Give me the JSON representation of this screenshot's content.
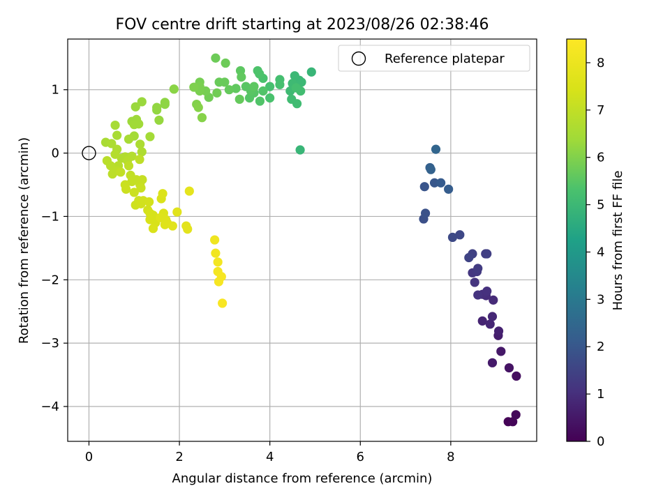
{
  "chart_data": {
    "type": "scatter",
    "title": "FOV centre drift starting at 2023/08/26 02:38:46",
    "xlabel": "Angular distance from reference (arcmin)",
    "ylabel": "Rotation from reference (arcmin)",
    "xlim": [
      -0.47,
      9.9
    ],
    "ylim": [
      -4.55,
      1.8
    ],
    "xticks": [
      0,
      2,
      4,
      6,
      8
    ],
    "xtick_labels": [
      "0",
      "2",
      "4",
      "6",
      "8"
    ],
    "yticks": [
      -4,
      -3,
      -2,
      -1,
      0,
      1
    ],
    "ytick_labels": [
      "−4",
      "−3",
      "−2",
      "−1",
      "0",
      "1"
    ],
    "grid": true,
    "colormap": "viridis",
    "colorbar": {
      "label": "Hours from first FF file",
      "range": [
        0,
        8.5
      ],
      "ticks": [
        0,
        1,
        2,
        3,
        4,
        5,
        6,
        7,
        8
      ],
      "tick_labels": [
        "0",
        "1",
        "2",
        "3",
        "4",
        "5",
        "6",
        "7",
        "8"
      ]
    },
    "legend": {
      "position": "top-right",
      "label": "Reference platepar"
    },
    "reference_point": {
      "x": 0,
      "y": 0
    },
    "points": [
      {
        "x": 9.27,
        "y": -4.24,
        "t": 0.05
      },
      {
        "x": 9.37,
        "y": -4.24,
        "t": 0.1
      },
      {
        "x": 9.44,
        "y": -4.13,
        "t": 0.15
      },
      {
        "x": 9.45,
        "y": -3.52,
        "t": 0.3
      },
      {
        "x": 9.29,
        "y": -3.39,
        "t": 0.4
      },
      {
        "x": 9.11,
        "y": -3.13,
        "t": 0.5
      },
      {
        "x": 8.92,
        "y": -3.31,
        "t": 0.55
      },
      {
        "x": 9.05,
        "y": -2.88,
        "t": 0.6
      },
      {
        "x": 9.06,
        "y": -2.81,
        "t": 0.7
      },
      {
        "x": 8.7,
        "y": -2.65,
        "t": 0.75
      },
      {
        "x": 8.87,
        "y": -2.7,
        "t": 0.8
      },
      {
        "x": 8.92,
        "y": -2.58,
        "t": 0.85
      },
      {
        "x": 8.94,
        "y": -2.32,
        "t": 0.9
      },
      {
        "x": 8.78,
        "y": -2.25,
        "t": 0.95
      },
      {
        "x": 8.7,
        "y": -2.23,
        "t": 1.0
      },
      {
        "x": 8.8,
        "y": -2.18,
        "t": 1.05
      },
      {
        "x": 8.6,
        "y": -2.24,
        "t": 1.1
      },
      {
        "x": 8.53,
        "y": -2.04,
        "t": 1.15
      },
      {
        "x": 8.48,
        "y": -1.89,
        "t": 1.2
      },
      {
        "x": 8.58,
        "y": -1.87,
        "t": 1.25
      },
      {
        "x": 8.6,
        "y": -1.82,
        "t": 1.3
      },
      {
        "x": 8.77,
        "y": -1.59,
        "t": 1.35
      },
      {
        "x": 8.8,
        "y": -1.59,
        "t": 1.4
      },
      {
        "x": 8.48,
        "y": -1.59,
        "t": 1.45
      },
      {
        "x": 8.4,
        "y": -1.65,
        "t": 1.5
      },
      {
        "x": 8.2,
        "y": -1.29,
        "t": 1.6
      },
      {
        "x": 8.04,
        "y": -1.33,
        "t": 1.65
      },
      {
        "x": 7.4,
        "y": -1.04,
        "t": 1.8
      },
      {
        "x": 7.44,
        "y": -0.95,
        "t": 1.85
      },
      {
        "x": 7.42,
        "y": -0.53,
        "t": 1.95
      },
      {
        "x": 7.64,
        "y": -0.47,
        "t": 2.0
      },
      {
        "x": 7.78,
        "y": -0.47,
        "t": 2.1
      },
      {
        "x": 7.95,
        "y": -0.57,
        "t": 2.15
      },
      {
        "x": 7.54,
        "y": -0.23,
        "t": 2.25
      },
      {
        "x": 7.56,
        "y": -0.26,
        "t": 2.3
      },
      {
        "x": 7.67,
        "y": 0.06,
        "t": 2.4
      },
      {
        "x": 4.67,
        "y": 0.05,
        "t": 4.9
      },
      {
        "x": 4.92,
        "y": 1.28,
        "t": 4.9
      },
      {
        "x": 4.65,
        "y": 1.15,
        "t": 4.95
      },
      {
        "x": 4.7,
        "y": 1.12,
        "t": 5.0
      },
      {
        "x": 4.55,
        "y": 1.22,
        "t": 5.0
      },
      {
        "x": 4.5,
        "y": 1.1,
        "t": 5.05
      },
      {
        "x": 4.45,
        "y": 0.98,
        "t": 5.05
      },
      {
        "x": 4.6,
        "y": 0.78,
        "t": 5.1
      },
      {
        "x": 4.48,
        "y": 0.85,
        "t": 5.1
      },
      {
        "x": 4.68,
        "y": 0.98,
        "t": 5.15
      },
      {
        "x": 4.58,
        "y": 1.03,
        "t": 5.2
      },
      {
        "x": 4.22,
        "y": 1.16,
        "t": 5.2
      },
      {
        "x": 4.22,
        "y": 1.08,
        "t": 5.25
      },
      {
        "x": 4.0,
        "y": 1.05,
        "t": 5.25
      },
      {
        "x": 4.0,
        "y": 0.87,
        "t": 5.3
      },
      {
        "x": 3.85,
        "y": 1.18,
        "t": 5.3
      },
      {
        "x": 3.73,
        "y": 1.3,
        "t": 5.35
      },
      {
        "x": 3.77,
        "y": 1.25,
        "t": 5.35
      },
      {
        "x": 3.85,
        "y": 0.98,
        "t": 5.4
      },
      {
        "x": 3.78,
        "y": 0.82,
        "t": 5.4
      },
      {
        "x": 3.65,
        "y": 0.95,
        "t": 5.45
      },
      {
        "x": 3.55,
        "y": 0.87,
        "t": 5.45
      },
      {
        "x": 3.58,
        "y": 0.98,
        "t": 5.5
      },
      {
        "x": 3.47,
        "y": 1.05,
        "t": 5.5
      },
      {
        "x": 3.65,
        "y": 1.05,
        "t": 5.55
      },
      {
        "x": 3.35,
        "y": 1.3,
        "t": 5.55
      },
      {
        "x": 3.37,
        "y": 1.2,
        "t": 5.6
      },
      {
        "x": 3.25,
        "y": 1.02,
        "t": 5.6
      },
      {
        "x": 3.33,
        "y": 0.85,
        "t": 5.65
      },
      {
        "x": 3.1,
        "y": 1.0,
        "t": 5.65
      },
      {
        "x": 3.0,
        "y": 1.12,
        "t": 5.7
      },
      {
        "x": 2.88,
        "y": 1.12,
        "t": 5.7
      },
      {
        "x": 3.02,
        "y": 1.42,
        "t": 5.75
      },
      {
        "x": 2.8,
        "y": 1.5,
        "t": 5.75
      },
      {
        "x": 2.83,
        "y": 0.95,
        "t": 5.8
      },
      {
        "x": 2.65,
        "y": 0.88,
        "t": 5.8
      },
      {
        "x": 2.58,
        "y": 0.98,
        "t": 5.85
      },
      {
        "x": 2.45,
        "y": 1.12,
        "t": 5.85
      },
      {
        "x": 2.45,
        "y": 1.05,
        "t": 5.9
      },
      {
        "x": 2.45,
        "y": 0.98,
        "t": 5.9
      },
      {
        "x": 2.32,
        "y": 1.04,
        "t": 5.95
      },
      {
        "x": 2.38,
        "y": 0.77,
        "t": 6.0
      },
      {
        "x": 2.42,
        "y": 0.72,
        "t": 6.05
      },
      {
        "x": 2.5,
        "y": 0.56,
        "t": 6.05
      },
      {
        "x": 1.88,
        "y": 1.01,
        "t": 6.1
      },
      {
        "x": 1.68,
        "y": 0.77,
        "t": 6.15
      },
      {
        "x": 1.68,
        "y": 0.8,
        "t": 6.15
      },
      {
        "x": 1.5,
        "y": 0.68,
        "t": 6.2
      },
      {
        "x": 1.5,
        "y": 0.72,
        "t": 6.2
      },
      {
        "x": 1.55,
        "y": 0.52,
        "t": 6.25
      },
      {
        "x": 1.17,
        "y": 0.81,
        "t": 6.3
      },
      {
        "x": 1.03,
        "y": 0.73,
        "t": 6.3
      },
      {
        "x": 0.95,
        "y": 0.5,
        "t": 6.35
      },
      {
        "x": 1.05,
        "y": 0.53,
        "t": 6.35
      },
      {
        "x": 1.1,
        "y": 0.46,
        "t": 6.4
      },
      {
        "x": 1.0,
        "y": 0.45,
        "t": 6.4
      },
      {
        "x": 1.35,
        "y": 0.26,
        "t": 6.45
      },
      {
        "x": 1.0,
        "y": 0.27,
        "t": 6.45
      },
      {
        "x": 0.88,
        "y": 0.22,
        "t": 6.5
      },
      {
        "x": 0.58,
        "y": 0.44,
        "t": 6.5
      },
      {
        "x": 0.62,
        "y": 0.28,
        "t": 6.55
      },
      {
        "x": 0.37,
        "y": 0.17,
        "t": 6.55
      },
      {
        "x": 0.5,
        "y": 0.15,
        "t": 6.6
      },
      {
        "x": 1.13,
        "y": 0.14,
        "t": 6.6
      },
      {
        "x": 1.17,
        "y": 0.02,
        "t": 6.65
      },
      {
        "x": 0.62,
        "y": 0.06,
        "t": 6.65
      },
      {
        "x": 0.72,
        "y": -0.08,
        "t": 6.7
      },
      {
        "x": 0.8,
        "y": -0.06,
        "t": 6.7
      },
      {
        "x": 0.58,
        "y": -0.02,
        "t": 6.75
      },
      {
        "x": 0.95,
        "y": -0.05,
        "t": 6.75
      },
      {
        "x": 0.85,
        "y": -0.12,
        "t": 6.8
      },
      {
        "x": 0.65,
        "y": -0.2,
        "t": 6.8
      },
      {
        "x": 0.4,
        "y": -0.12,
        "t": 6.85
      },
      {
        "x": 0.48,
        "y": -0.2,
        "t": 6.85
      },
      {
        "x": 0.52,
        "y": -0.33,
        "t": 6.9
      },
      {
        "x": 0.62,
        "y": -0.28,
        "t": 6.9
      },
      {
        "x": 0.88,
        "y": -0.2,
        "t": 6.95
      },
      {
        "x": 1.12,
        "y": -0.1,
        "t": 6.95
      },
      {
        "x": 0.7,
        "y": -0.3,
        "t": 7.0
      },
      {
        "x": 0.92,
        "y": -0.35,
        "t": 7.0
      },
      {
        "x": 0.95,
        "y": -0.45,
        "t": 7.05
      },
      {
        "x": 1.05,
        "y": -0.42,
        "t": 7.05
      },
      {
        "x": 1.13,
        "y": -0.5,
        "t": 7.1
      },
      {
        "x": 1.18,
        "y": -0.42,
        "t": 7.1
      },
      {
        "x": 1.15,
        "y": -0.55,
        "t": 7.15
      },
      {
        "x": 0.8,
        "y": -0.5,
        "t": 7.15
      },
      {
        "x": 0.82,
        "y": -0.57,
        "t": 7.2
      },
      {
        "x": 1.0,
        "y": -0.62,
        "t": 7.2
      },
      {
        "x": 1.03,
        "y": -0.82,
        "t": 7.25
      },
      {
        "x": 1.1,
        "y": -0.75,
        "t": 7.25
      },
      {
        "x": 1.2,
        "y": -0.75,
        "t": 7.3
      },
      {
        "x": 1.15,
        "y": -0.8,
        "t": 7.3
      },
      {
        "x": 1.33,
        "y": -0.77,
        "t": 7.35
      },
      {
        "x": 1.3,
        "y": -0.9,
        "t": 7.35
      },
      {
        "x": 1.35,
        "y": -0.95,
        "t": 7.4
      },
      {
        "x": 1.42,
        "y": -0.98,
        "t": 7.4
      },
      {
        "x": 1.35,
        "y": -1.05,
        "t": 7.45
      },
      {
        "x": 1.47,
        "y": -1.1,
        "t": 7.45
      },
      {
        "x": 1.42,
        "y": -1.19,
        "t": 7.5
      },
      {
        "x": 1.6,
        "y": -0.72,
        "t": 7.5
      },
      {
        "x": 1.63,
        "y": -0.64,
        "t": 7.55
      },
      {
        "x": 1.65,
        "y": -0.95,
        "t": 7.55
      },
      {
        "x": 1.58,
        "y": -1.02,
        "t": 7.6
      },
      {
        "x": 1.7,
        "y": -1.05,
        "t": 7.6
      },
      {
        "x": 1.73,
        "y": -1.1,
        "t": 7.65
      },
      {
        "x": 1.68,
        "y": -1.13,
        "t": 7.65
      },
      {
        "x": 1.85,
        "y": -1.15,
        "t": 7.7
      },
      {
        "x": 1.95,
        "y": -0.93,
        "t": 7.7
      },
      {
        "x": 2.15,
        "y": -1.15,
        "t": 7.75
      },
      {
        "x": 2.18,
        "y": -1.2,
        "t": 7.75
      },
      {
        "x": 2.22,
        "y": -0.6,
        "t": 7.8
      },
      {
        "x": 2.78,
        "y": -1.37,
        "t": 8.1
      },
      {
        "x": 2.8,
        "y": -1.58,
        "t": 8.15
      },
      {
        "x": 2.85,
        "y": -1.72,
        "t": 8.2
      },
      {
        "x": 2.85,
        "y": -1.87,
        "t": 8.25
      },
      {
        "x": 2.93,
        "y": -1.95,
        "t": 8.3
      },
      {
        "x": 2.87,
        "y": -2.03,
        "t": 8.3
      },
      {
        "x": 2.95,
        "y": -2.37,
        "t": 8.35
      }
    ]
  }
}
